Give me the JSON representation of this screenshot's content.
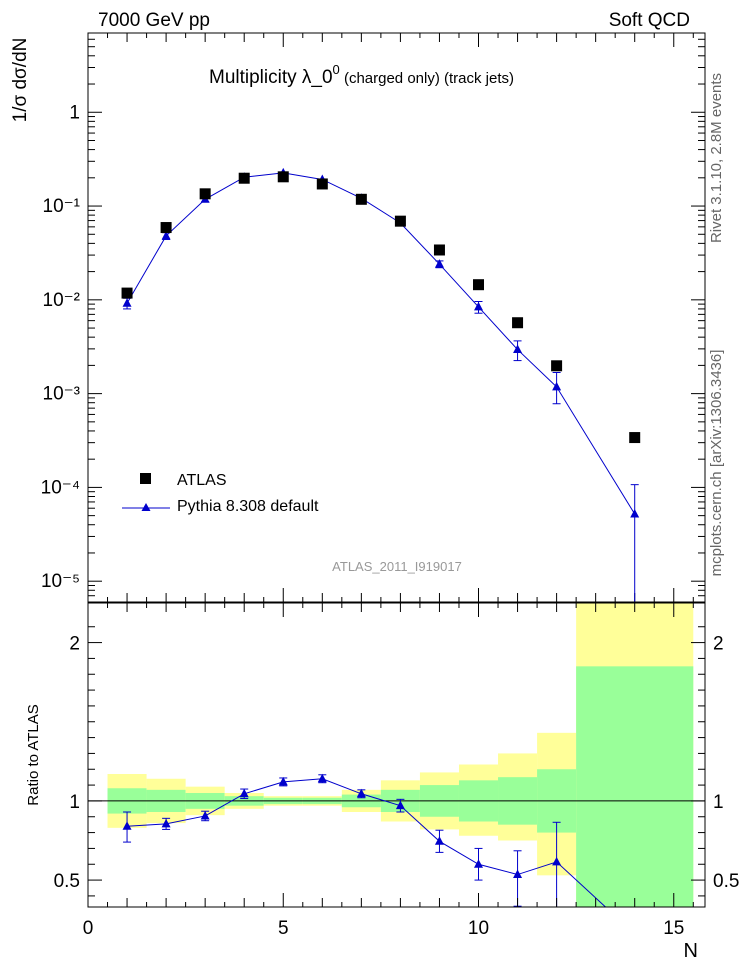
{
  "header": {
    "left": "7000 GeV pp",
    "right": "Soft QCD"
  },
  "side_labels": {
    "rivet": "Rivet 3.1.10,  2.8M events",
    "source": "mcplots.cern.ch [arXiv:1306.3436]"
  },
  "chart_data": [
    {
      "type": "scatter",
      "title": "Multiplicity  λ_0⁰ (charged only) (track jets)",
      "title_main": "Multiplicity  λ_0",
      "title_sup": "0",
      "title_small": " (charged only) (track jets)",
      "ylabel": "1/σ dσ/dN",
      "xlabel": "N",
      "watermark": "ATLAS_2011_I919017",
      "y_scale": "log",
      "xlim": [
        0,
        15.8
      ],
      "ylim": [
        6e-06,
        7
      ],
      "y_tick_labels": [
        "10⁻⁵",
        "10⁻⁴",
        "10⁻³",
        "10⁻²",
        "10⁻¹",
        "1"
      ],
      "legend_position": "lower-left",
      "series": [
        {
          "name": "ATLAS",
          "marker": "square",
          "color": "#000000",
          "x": [
            1,
            2,
            3,
            4,
            5,
            6,
            7,
            8,
            9,
            10,
            11,
            12,
            14
          ],
          "y": [
            0.0118,
            0.059,
            0.135,
            0.198,
            0.205,
            0.172,
            0.118,
            0.069,
            0.034,
            0.0145,
            0.0057,
            0.00198,
            0.00034
          ]
        },
        {
          "name": "Pythia 8.308 default",
          "marker": "triangle",
          "color": "#0000cc",
          "x": [
            1,
            2,
            3,
            4,
            5,
            6,
            7,
            8,
            9,
            10,
            11,
            12,
            14
          ],
          "y": [
            0.0092,
            0.048,
            0.118,
            0.203,
            0.226,
            0.192,
            0.121,
            0.066,
            0.024,
            0.0084,
            0.00295,
            0.00118,
            5.2e-05
          ],
          "err_lo": [
            0.0012,
            0.004,
            0.007,
            0.008,
            0.008,
            0.007,
            0.006,
            0.004,
            0.002,
            0.0012,
            0.0007,
            0.0004,
            5e-05
          ],
          "err_hi": [
            0.0012,
            0.004,
            0.007,
            0.008,
            0.008,
            0.007,
            0.006,
            0.004,
            0.002,
            0.0012,
            0.0007,
            0.0005,
            5.5e-05
          ]
        }
      ]
    },
    {
      "type": "line",
      "ylabel": "Ratio to ATLAS",
      "xlabel": "N",
      "xlim": [
        0,
        15.8
      ],
      "ylim": [
        0.33,
        2.25
      ],
      "x_ticks": [
        0,
        5,
        10,
        15
      ],
      "y_ticks": [
        0.5,
        1,
        2
      ],
      "reference_line": 1,
      "bands": {
        "bins": [
          [
            0.5,
            1.5
          ],
          [
            1.5,
            2.5
          ],
          [
            2.5,
            3.5
          ],
          [
            3.5,
            4.5
          ],
          [
            4.5,
            5.5
          ],
          [
            5.5,
            6.5
          ],
          [
            6.5,
            7.5
          ],
          [
            7.5,
            8.5
          ],
          [
            8.5,
            9.5
          ],
          [
            9.5,
            10.5
          ],
          [
            10.5,
            11.5
          ],
          [
            11.5,
            12.5
          ],
          [
            12.5,
            15.5
          ]
        ],
        "green_lo": [
          0.92,
          0.93,
          0.95,
          0.97,
          0.98,
          0.98,
          0.96,
          0.93,
          0.9,
          0.87,
          0.85,
          0.8,
          0.15
        ],
        "green_hi": [
          1.08,
          1.07,
          1.05,
          1.03,
          1.02,
          1.02,
          1.04,
          1.07,
          1.1,
          1.13,
          1.15,
          1.2,
          1.85
        ],
        "yellow_lo": [
          0.83,
          0.86,
          0.91,
          0.95,
          0.97,
          0.97,
          0.93,
          0.87,
          0.82,
          0.78,
          0.75,
          0.53,
          0.15
        ],
        "yellow_hi": [
          1.17,
          1.14,
          1.09,
          1.05,
          1.03,
          1.03,
          1.07,
          1.13,
          1.18,
          1.23,
          1.3,
          1.43,
          2.25
        ],
        "colors": {
          "inner": "#99ff99",
          "outer": "#ffff99"
        }
      },
      "series": [
        {
          "name": "Pythia 8.308 default",
          "color": "#0000cc",
          "x": [
            1,
            2,
            3,
            4,
            5,
            6,
            7,
            8,
            9,
            10,
            11,
            12,
            14
          ],
          "y": [
            0.84,
            0.855,
            0.905,
            1.045,
            1.12,
            1.14,
            1.045,
            0.97,
            0.745,
            0.6,
            0.535,
            0.615,
            0.16
          ],
          "err_lo": [
            0.1,
            0.035,
            0.03,
            0.03,
            0.025,
            0.025,
            0.025,
            0.04,
            0.07,
            0.1,
            0.2,
            0.3,
            0.0
          ],
          "err_hi": [
            0.09,
            0.035,
            0.03,
            0.03,
            0.025,
            0.025,
            0.025,
            0.04,
            0.07,
            0.1,
            0.15,
            0.25,
            0.0
          ]
        }
      ]
    }
  ]
}
